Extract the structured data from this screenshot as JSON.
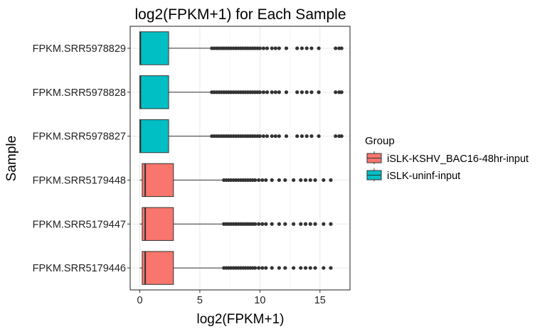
{
  "chart_data": {
    "type": "boxplot",
    "orientation": "horizontal",
    "title": "log2(FPKM+1) for Each Sample",
    "xlabel": "log2(FPKM+1)",
    "ylabel": "Sample",
    "xlim": [
      -0.8,
      17.5
    ],
    "xticks": [
      0,
      5,
      10,
      15
    ],
    "grid": true,
    "legend": {
      "title": "Group",
      "placement": "right",
      "entries": [
        {
          "label": "iSLK-KSHV_BAC16-48hr-input",
          "color": "#F8766D"
        },
        {
          "label": "iSLK-uninf-input",
          "color": "#00BFC4"
        }
      ]
    },
    "categories": [
      "FPKM.SRR5978829",
      "FPKM.SRR5978828",
      "FPKM.SRR5978827",
      "FPKM.SRR5179448",
      "FPKM.SRR5179447",
      "FPKM.SRR5179446"
    ],
    "boxes": [
      {
        "sample": "FPKM.SRR5978829",
        "group": "iSLK-uninf-input",
        "min": 0,
        "q1": 0,
        "median": 0.05,
        "q3": 2.4,
        "whisker_high": 5.9,
        "outliers": [
          6.0,
          6.2,
          6.4,
          6.6,
          6.8,
          7.0,
          7.2,
          7.4,
          7.6,
          7.8,
          8.0,
          8.2,
          8.4,
          8.6,
          8.8,
          9.0,
          9.2,
          9.4,
          9.6,
          9.8,
          10.0,
          10.3,
          10.6,
          11.0,
          11.3,
          11.6,
          12.2,
          13.1,
          13.5,
          13.9,
          14.3,
          14.9,
          16.3,
          16.6,
          16.8
        ]
      },
      {
        "sample": "FPKM.SRR5978828",
        "group": "iSLK-uninf-input",
        "min": 0,
        "q1": 0,
        "median": 0.05,
        "q3": 2.4,
        "whisker_high": 5.9,
        "outliers": [
          6.0,
          6.2,
          6.4,
          6.6,
          6.8,
          7.0,
          7.2,
          7.4,
          7.6,
          7.8,
          8.0,
          8.2,
          8.4,
          8.6,
          8.8,
          9.0,
          9.2,
          9.4,
          9.6,
          9.8,
          10.0,
          10.3,
          10.6,
          11.0,
          11.3,
          11.6,
          12.2,
          13.1,
          13.5,
          13.9,
          14.3,
          14.9,
          16.3,
          16.6,
          16.8
        ]
      },
      {
        "sample": "FPKM.SRR5978827",
        "group": "iSLK-uninf-input",
        "min": 0,
        "q1": 0,
        "median": 0.05,
        "q3": 2.4,
        "whisker_high": 5.9,
        "outliers": [
          6.0,
          6.2,
          6.4,
          6.6,
          6.8,
          7.0,
          7.2,
          7.4,
          7.6,
          7.8,
          8.0,
          8.2,
          8.4,
          8.6,
          8.8,
          9.0,
          9.2,
          9.4,
          9.6,
          9.8,
          10.0,
          10.3,
          10.6,
          11.0,
          11.3,
          11.6,
          12.2,
          13.1,
          13.5,
          13.9,
          14.3,
          14.9,
          16.3,
          16.6,
          16.8
        ]
      },
      {
        "sample": "FPKM.SRR5179448",
        "group": "iSLK-KSHV_BAC16-48hr-input",
        "min": 0,
        "q1": 0.2,
        "median": 0.45,
        "q3": 2.8,
        "whisker_high": 6.9,
        "outliers": [
          7.0,
          7.2,
          7.4,
          7.6,
          7.8,
          8.0,
          8.2,
          8.4,
          8.6,
          8.8,
          9.0,
          9.2,
          9.4,
          9.6,
          9.9,
          10.2,
          10.5,
          11.0,
          11.6,
          12.1,
          12.8,
          13.4,
          13.8,
          14.2,
          14.6,
          15.3,
          15.9
        ]
      },
      {
        "sample": "FPKM.SRR5179447",
        "group": "iSLK-KSHV_BAC16-48hr-input",
        "min": 0,
        "q1": 0.2,
        "median": 0.45,
        "q3": 2.8,
        "whisker_high": 6.9,
        "outliers": [
          7.0,
          7.2,
          7.4,
          7.6,
          7.8,
          8.0,
          8.2,
          8.4,
          8.6,
          8.8,
          9.0,
          9.2,
          9.4,
          9.6,
          9.9,
          10.2,
          10.5,
          11.0,
          11.6,
          12.1,
          12.8,
          13.4,
          13.8,
          14.2,
          14.6,
          15.3,
          15.9
        ]
      },
      {
        "sample": "FPKM.SRR5179446",
        "group": "iSLK-KSHV_BAC16-48hr-input",
        "min": 0,
        "q1": 0.2,
        "median": 0.45,
        "q3": 2.8,
        "whisker_high": 6.9,
        "outliers": [
          7.0,
          7.2,
          7.4,
          7.6,
          7.8,
          8.0,
          8.2,
          8.4,
          8.6,
          8.8,
          9.0,
          9.2,
          9.4,
          9.6,
          9.9,
          10.2,
          10.5,
          11.0,
          11.6,
          12.1,
          12.8,
          13.4,
          13.8,
          14.2,
          14.6,
          15.3,
          15.9
        ]
      }
    ],
    "colors": {
      "outlier": "#333333",
      "box_outline": "#333333",
      "grid_major": "#ebebeb",
      "grid_minor": "#f4f4f4",
      "panel_border": "#333333"
    }
  }
}
